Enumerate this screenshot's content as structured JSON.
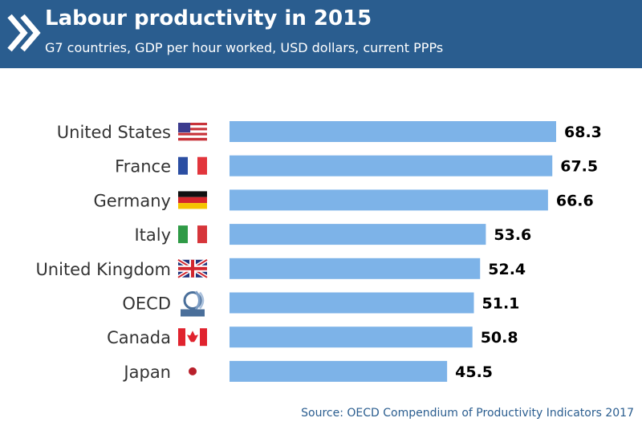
{
  "header": {
    "title": "Labour productivity in 2015",
    "subtitle": "G7 countries, GDP per hour worked, USD dollars, current PPPs"
  },
  "source": "Source: OECD Compendium of Productivity Indicators 2017",
  "icons": [
    "oecd-chevron-icon"
  ],
  "colors": {
    "header": "#2a5d8f",
    "bar": "#7db3e8",
    "label": "#333333",
    "value": "#000000"
  },
  "chart_data": {
    "type": "bar",
    "orientation": "horizontal",
    "title": "Labour productivity in 2015",
    "subtitle": "G7 countries, GDP per hour worked, USD dollars, current PPPs",
    "categories": [
      "United States",
      "France",
      "Germany",
      "Italy",
      "United Kingdom",
      "OECD",
      "Canada",
      "Japan"
    ],
    "values": [
      68.3,
      67.5,
      66.6,
      53.6,
      52.4,
      51.1,
      50.8,
      45.5
    ],
    "value_labels": [
      "68.3",
      "67.5",
      "66.6",
      "53.6",
      "52.4",
      "51.1",
      "50.8",
      "45.5"
    ],
    "flags": [
      "us-flag-icon",
      "france-flag-icon",
      "germany-flag-icon",
      "italy-flag-icon",
      "uk-flag-icon",
      "oecd-logo-icon",
      "canada-flag-icon",
      "japan-flag-icon"
    ],
    "xlim": [
      0,
      68.3
    ],
    "grid": false,
    "legend": "none"
  }
}
